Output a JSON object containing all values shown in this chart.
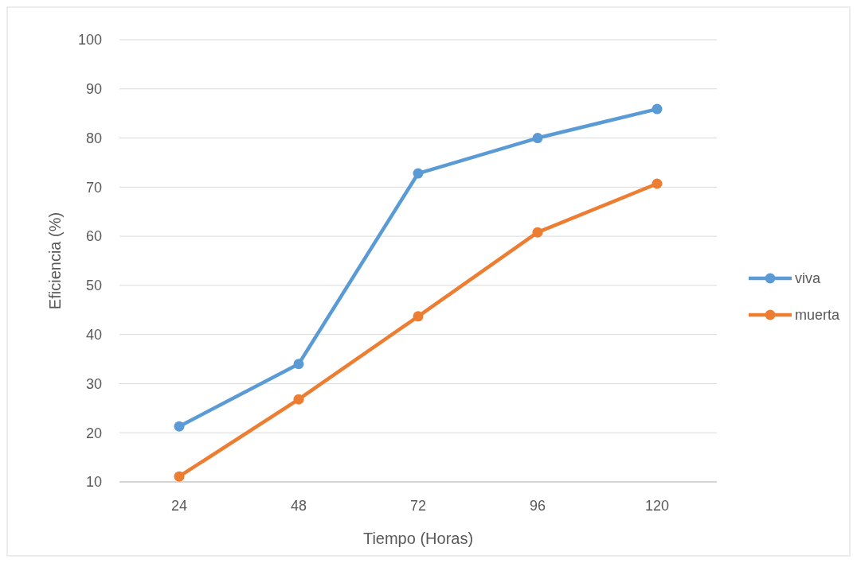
{
  "chart_data": {
    "type": "line",
    "xlabel": "Tiempo (Horas)",
    "ylabel": "Eficiencia (%)",
    "categories": [
      "24",
      "48",
      "72",
      "96",
      "120"
    ],
    "series": [
      {
        "name": "viva",
        "color": "#5b9bd5",
        "values": [
          21.3,
          34,
          72.8,
          80,
          85.9
        ]
      },
      {
        "name": "muerta",
        "color": "#ed7d31",
        "values": [
          11.1,
          26.8,
          43.7,
          60.8,
          70.7
        ]
      }
    ],
    "ylim": [
      10,
      100
    ],
    "yticks": [
      10,
      20,
      30,
      40,
      50,
      60,
      70,
      80,
      90,
      100
    ],
    "grid": "y",
    "legend": "right",
    "marker": "circle",
    "line_style": "solid"
  }
}
